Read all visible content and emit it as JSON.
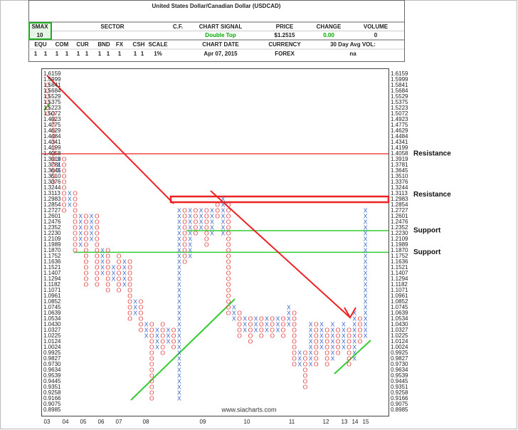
{
  "header": {
    "title": "United States Dollar/Canadian Dollar (USDCAD)",
    "smax_label": "SMAX",
    "smax_value": "10",
    "sector_label": "SECTOR",
    "cf_label": "C.F.",
    "signal_label": "CHART SIGNAL",
    "signal_value": "Double Top",
    "price_label": "PRICE",
    "price_value": "$1.2515",
    "change_label": "CHANGE",
    "change_value": "0.00",
    "volume_label": "VOLUME",
    "volume_value": "0",
    "scores": [
      {
        "label": "EQU",
        "values": [
          "1",
          "1"
        ]
      },
      {
        "label": "COM",
        "values": [
          "1",
          "1"
        ]
      },
      {
        "label": "CUR",
        "values": [
          "1",
          "1"
        ]
      },
      {
        "label": "BND",
        "values": [
          "1",
          "1"
        ]
      },
      {
        "label": "FX",
        "values": [
          "1"
        ]
      },
      {
        "label": "CSH",
        "values": [
          "1",
          "1"
        ]
      }
    ],
    "scale_label": "SCALE",
    "scale_value": "1%",
    "date_label": "CHART DATE",
    "date_value": "Apr 07, 2015",
    "currency_label": "CURRENCY",
    "currency_value": "FOREX",
    "avgvol_label": "30 Day Avg VOL:",
    "avgvol_value": "na"
  },
  "scale": [
    "1.6159",
    "1.5999",
    "1.5841",
    "1.5684",
    "1.5529",
    "1.5375",
    "1.5223",
    "1.5072",
    "1.4923",
    "1.4775",
    "1.4629",
    "1.4484",
    "1.4341",
    "1.4199",
    "1.4058",
    "1.3919",
    "1.3781",
    "1.3645",
    "1.3510",
    "1.3376",
    "1.3244",
    "1.3113",
    "1.2983",
    "1.2854",
    "1.2727",
    "1.2601",
    "1.2476",
    "1.2352",
    "1.2230",
    "1.2109",
    "1.1989",
    "1.1870",
    "1.1752",
    "1.1636",
    "1.1521",
    "1.1407",
    "1.1294",
    "1.1182",
    "1.1071",
    "1.0961",
    "1.0852",
    "1.0745",
    "1.0639",
    "1.0534",
    "1.0430",
    "1.0327",
    "1.0225",
    "1.0124",
    "1.0024",
    "0.9925",
    "0.9827",
    "0.9730",
    "0.9634",
    "0.9539",
    "0.9445",
    "0.9351",
    "0.9258",
    "0.9166",
    "0.9075",
    "0.8985"
  ],
  "years": [
    "03",
    "04",
    "05",
    "06",
    "07",
    "08",
    "09",
    "10",
    "11",
    "12",
    "13",
    "14",
    "15"
  ],
  "columns": [
    {
      "kind": "O",
      "top": 2,
      "bottom": 7
    },
    {
      "kind": "O",
      "top": 7,
      "bottom": 19
    },
    {
      "kind": "X",
      "top": 15,
      "bottom": 17
    },
    {
      "kind": "O",
      "top": 15,
      "bottom": 24
    },
    {
      "kind": "X",
      "top": 21,
      "bottom": 23
    },
    {
      "kind": "O",
      "top": 21,
      "bottom": 31
    },
    {
      "kind": "X",
      "top": 25,
      "bottom": 30
    },
    {
      "kind": "O",
      "top": 25,
      "bottom": 37
    },
    {
      "kind": "X",
      "top": 25,
      "bottom": 29
    },
    {
      "kind": "O",
      "top": 25,
      "bottom": 37
    },
    {
      "kind": "X",
      "top": 31,
      "bottom": 35
    },
    {
      "kind": "O",
      "top": 31,
      "bottom": 38
    },
    {
      "kind": "X",
      "top": 34,
      "bottom": 36
    },
    {
      "kind": "O",
      "top": 32,
      "bottom": 38
    },
    {
      "kind": "X",
      "top": 33,
      "bottom": 37
    },
    {
      "kind": "O",
      "top": 33,
      "bottom": 43
    },
    {
      "kind": "X",
      "top": 40,
      "bottom": 42
    },
    {
      "kind": "O",
      "top": 40,
      "bottom": 45
    },
    {
      "kind": "X",
      "top": 44,
      "bottom": 46
    },
    {
      "kind": "O",
      "top": 44,
      "bottom": 57
    },
    {
      "kind": "X",
      "top": 45,
      "bottom": 48
    },
    {
      "kind": "O",
      "top": 44,
      "bottom": 49
    },
    {
      "kind": "X",
      "top": 45,
      "bottom": 47
    },
    {
      "kind": "O",
      "top": 45,
      "bottom": 48
    },
    {
      "kind": "X",
      "top": 24,
      "bottom": 57
    },
    {
      "kind": "O",
      "top": 24,
      "bottom": 33
    },
    {
      "kind": "X",
      "top": 24,
      "bottom": 32
    },
    {
      "kind": "O",
      "top": 24,
      "bottom": 28
    },
    {
      "kind": "X",
      "top": 24,
      "bottom": 27
    },
    {
      "kind": "O",
      "top": 24,
      "bottom": 30
    },
    {
      "kind": "X",
      "top": 24,
      "bottom": 28
    },
    {
      "kind": "O",
      "top": 23,
      "bottom": 25
    },
    {
      "kind": "X",
      "top": 22,
      "bottom": 28
    },
    {
      "kind": "O",
      "top": 23,
      "bottom": 42
    },
    {
      "kind": "X",
      "top": 41,
      "bottom": 43
    },
    {
      "kind": "O",
      "top": 42,
      "bottom": 46
    },
    {
      "kind": "X",
      "top": 43,
      "bottom": 45
    },
    {
      "kind": "O",
      "top": 43,
      "bottom": 47
    },
    {
      "kind": "X",
      "top": 43,
      "bottom": 45
    },
    {
      "kind": "O",
      "top": 43,
      "bottom": 46
    },
    {
      "kind": "X",
      "top": 43,
      "bottom": 45
    },
    {
      "kind": "O",
      "top": 43,
      "bottom": 46
    },
    {
      "kind": "X",
      "top": 43,
      "bottom": 45
    },
    {
      "kind": "O",
      "top": 43,
      "bottom": 46
    },
    {
      "kind": "X",
      "top": 41,
      "bottom": 44
    },
    {
      "kind": "O",
      "top": 42,
      "bottom": 51
    },
    {
      "kind": "X",
      "top": 49,
      "bottom": 51
    },
    {
      "kind": "O",
      "top": 49,
      "bottom": 55
    },
    {
      "kind": "X",
      "top": 44,
      "bottom": 51
    },
    {
      "kind": "O",
      "top": 44,
      "bottom": 51
    },
    {
      "kind": "X",
      "top": 44,
      "bottom": 48
    },
    {
      "kind": "O",
      "top": 45,
      "bottom": 51
    },
    {
      "kind": "X",
      "top": 44,
      "bottom": 50
    },
    {
      "kind": "O",
      "top": 45,
      "bottom": 49
    },
    {
      "kind": "X",
      "top": 44,
      "bottom": 48
    },
    {
      "kind": "O",
      "top": 45,
      "bottom": 51
    },
    {
      "kind": "X",
      "top": 42,
      "bottom": 50
    },
    {
      "kind": "O",
      "top": 43,
      "bottom": 47
    },
    {
      "kind": "X",
      "top": 24,
      "bottom": 46
    }
  ],
  "annotations": [
    "Resistance",
    "Resistance",
    "Support",
    "Support"
  ],
  "watermark": "www.siacharts.com"
}
